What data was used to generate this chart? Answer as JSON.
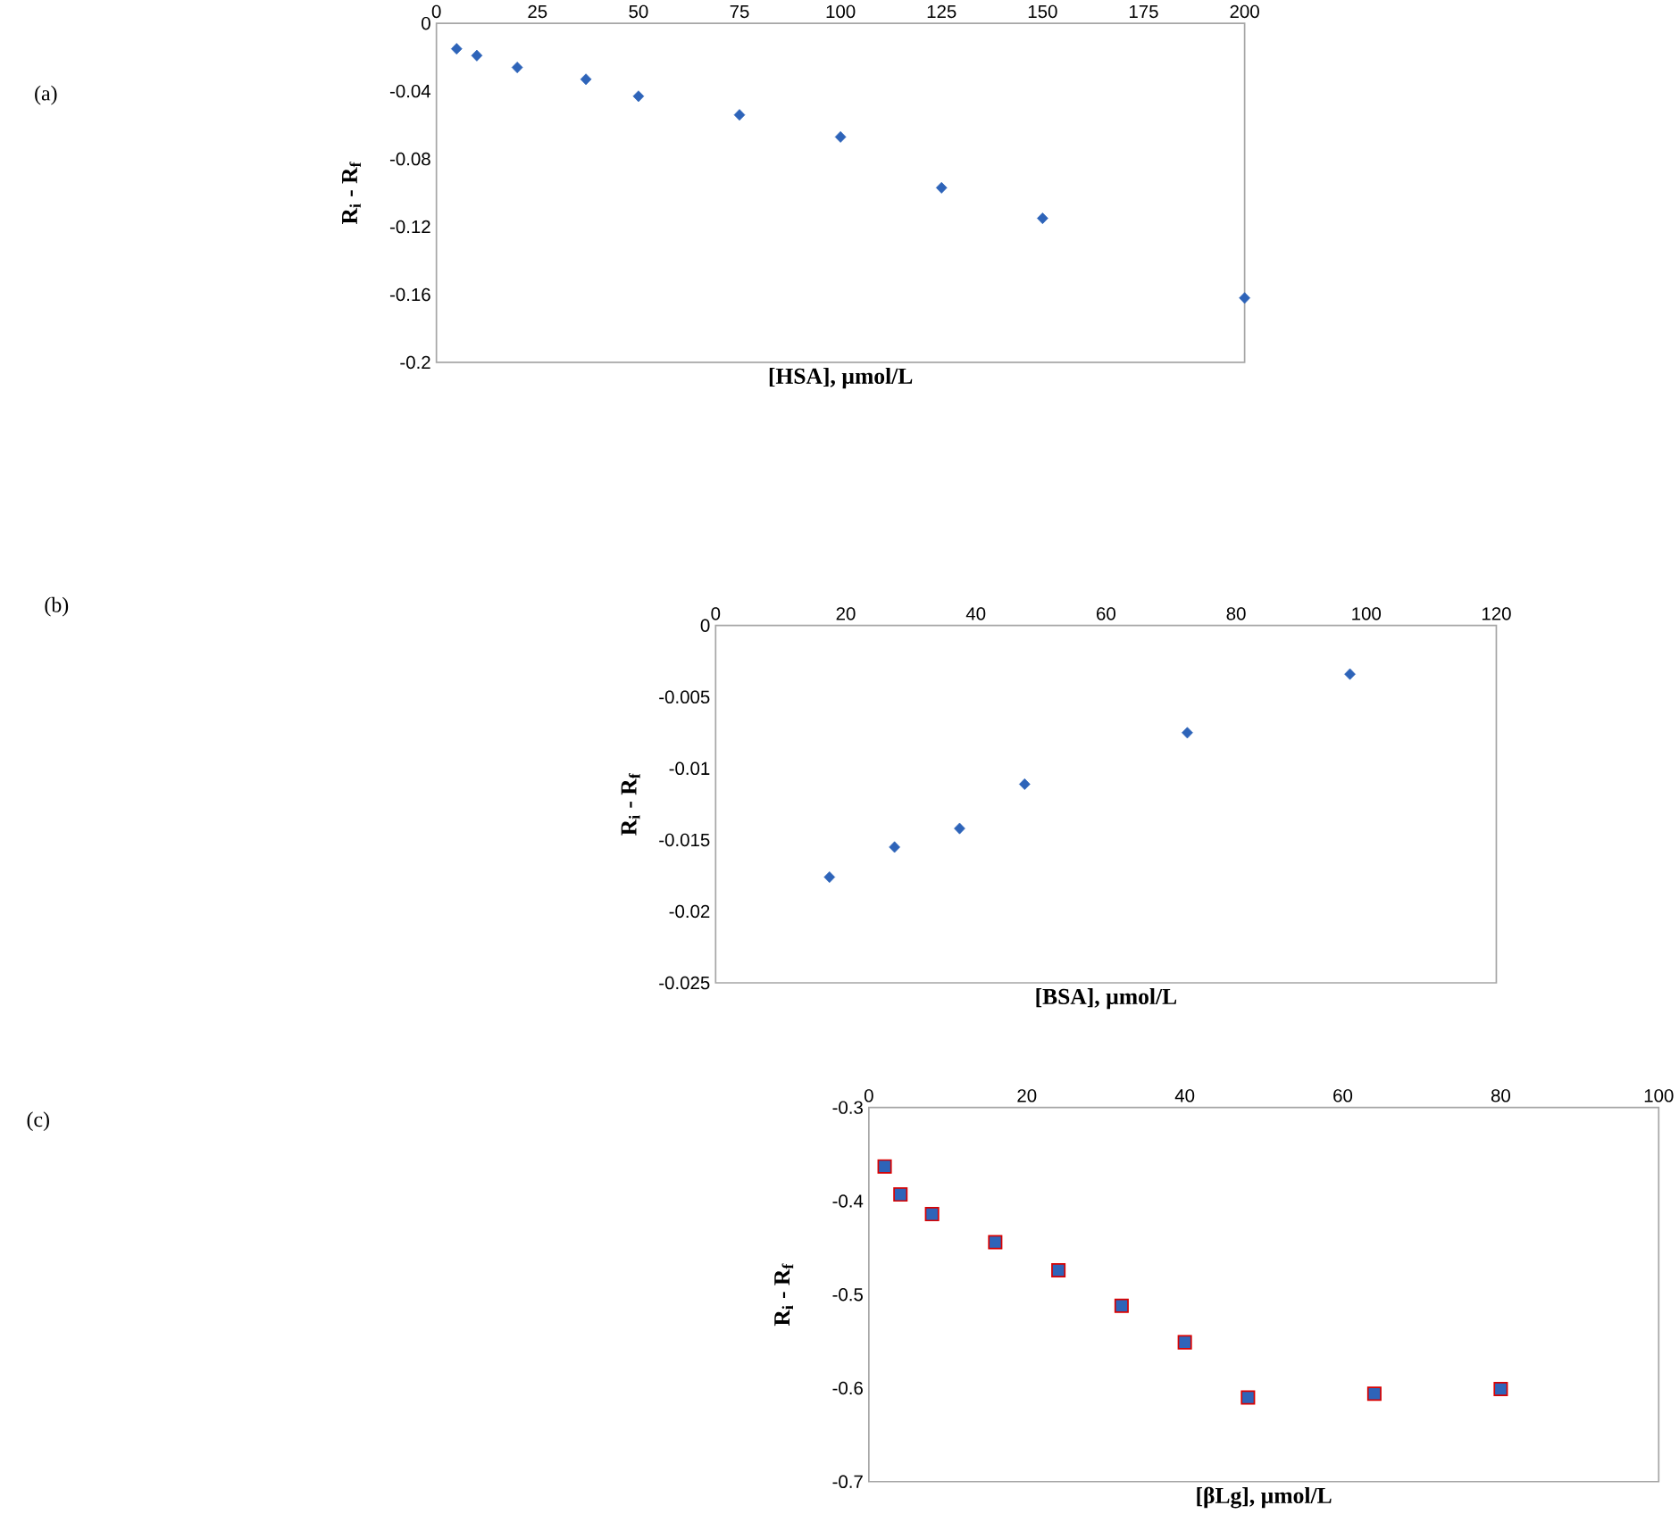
{
  "chart_data": [
    {
      "type": "scatter",
      "xlabel": "[HSA], µmol/L",
      "ylabel": "R$_{i}$ - R$_{f}$",
      "annotations": [
        "(a)"
      ],
      "marker": "diamond",
      "grid": false,
      "xlim": [
        0,
        200
      ],
      "xticks": [
        0,
        25,
        50,
        75,
        100,
        125,
        150,
        175,
        200
      ],
      "ylim": [
        -0.2,
        0
      ],
      "yticks": [
        -0.2,
        -0.16,
        -0.12,
        -0.08,
        -0.04,
        0
      ],
      "series": [
        {
          "color": "#2e64b9",
          "x": [
            5,
            10,
            20,
            37,
            50,
            75,
            100,
            125,
            150,
            200
          ],
          "values": [
            -0.015,
            -0.019,
            -0.026,
            -0.033,
            -0.043,
            -0.054,
            -0.067,
            -0.097,
            -0.115,
            -0.162
          ]
        }
      ]
    },
    {
      "type": "scatter",
      "xlabel": "[BSA], µmol/L",
      "ylabel": "R$_{i}$ - R$_{f}$",
      "annotations": [
        "(b)"
      ],
      "marker": "diamond",
      "grid": false,
      "xlim": [
        0,
        120
      ],
      "xticks": [
        0,
        20,
        40,
        60,
        80,
        100,
        120
      ],
      "ylim": [
        -0.025,
        0
      ],
      "yticks": [
        -0.025,
        -0.02,
        -0.015,
        -0.01,
        -0.005,
        0
      ],
      "series": [
        {
          "color": "#2e64b9",
          "x": [
            17.5,
            27.5,
            37.5,
            47.5,
            72.5,
            97.5
          ],
          "values": [
            -0.0176,
            -0.0155,
            -0.0142,
            -0.0111,
            -0.0075,
            -0.0034
          ]
        }
      ]
    },
    {
      "type": "scatter",
      "xlabel": "[βLg], µmol/L",
      "ylabel": "R$_{i}$ - R$_{f}$",
      "annotations": [
        "(c)"
      ],
      "marker": "square",
      "grid": false,
      "xlim": [
        0,
        100
      ],
      "xticks": [
        0,
        20,
        40,
        60,
        80,
        100
      ],
      "ylim": [
        -0.7,
        -0.3
      ],
      "yticks": [
        -0.7,
        -0.6,
        -0.5,
        -0.4,
        -0.3
      ],
      "series": [
        {
          "color": "#2e64b9",
          "x": [
            2,
            4,
            8,
            16,
            24,
            32,
            40,
            48,
            64,
            80
          ],
          "values": [
            -0.363,
            -0.393,
            -0.414,
            -0.444,
            -0.474,
            -0.512,
            -0.551,
            -0.61,
            -0.606,
            -0.601
          ]
        }
      ]
    }
  ]
}
